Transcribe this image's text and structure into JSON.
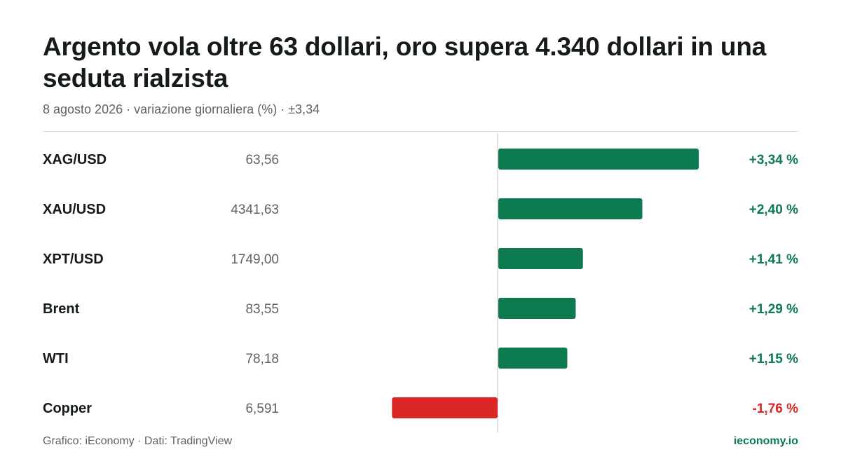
{
  "header": {
    "title": "Argento vola oltre 63 dollari, oro supera 4.340 dollari in una seduta rialzista",
    "subtitle": "8 agosto 2026 · variazione giornaliera (%) · ±3,34"
  },
  "chart_data": {
    "type": "bar",
    "orientation": "horizontal",
    "title": "Argento vola oltre 63 dollari, oro supera 4.340 dollari in una seduta rialzista",
    "subtitle": "8 agosto 2026 · variazione giornaliera (%) · ±3,34",
    "xlim": [
      -3.34,
      3.34
    ],
    "categories": [
      "XAG/USD",
      "XAU/USD",
      "XPT/USD",
      "Brent",
      "WTI",
      "Copper"
    ],
    "prices": [
      "63,56",
      "4341,63",
      "1749,00",
      "83,55",
      "78,18",
      "6,591"
    ],
    "values": [
      3.34,
      2.4,
      1.41,
      1.29,
      1.15,
      -1.76
    ],
    "value_labels": [
      "+3,34 %",
      "+2,40 %",
      "+1,41 %",
      "+1,29 %",
      "+1,15 %",
      "-1,76 %"
    ],
    "grid": false,
    "legend": "none"
  },
  "colors": {
    "positive": "#0d7a50",
    "negative": "#dc2626",
    "title": "#151a1a",
    "muted": "#5d6463",
    "axis": "#d9dcdc"
  },
  "footer": {
    "source": "Grafico: iEconomy · Dati: TradingView",
    "brand": "ieconomy.io"
  }
}
